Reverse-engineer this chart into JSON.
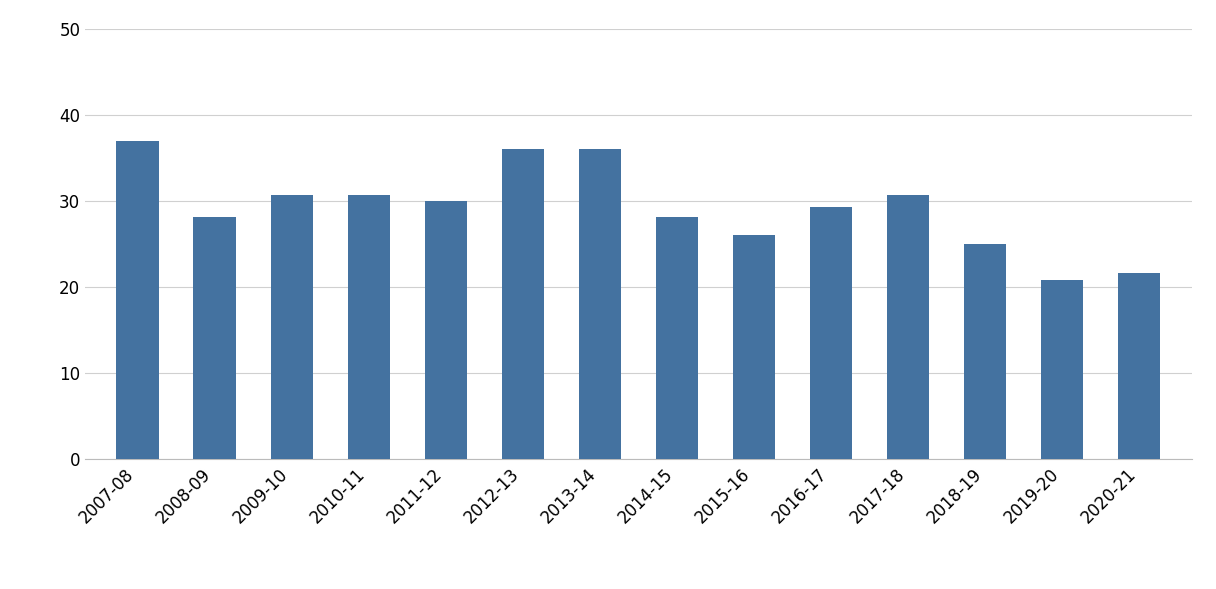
{
  "categories": [
    "2007-08",
    "2008-09",
    "2009-10",
    "2010-11",
    "2011-12",
    "2012-13",
    "2013-14",
    "2014-15",
    "2015-16",
    "2016-17",
    "2017-18",
    "2018-19",
    "2019-20",
    "2020-21"
  ],
  "values": [
    37.0,
    28.2,
    30.7,
    30.7,
    30.0,
    36.1,
    36.1,
    28.2,
    26.1,
    29.3,
    30.7,
    25.0,
    20.9,
    21.7
  ],
  "bar_color": "#4472a0",
  "ylim": [
    0,
    50
  ],
  "yticks": [
    0,
    10,
    20,
    30,
    40,
    50
  ],
  "background_color": "#ffffff",
  "grid_color": "#d0d0d0",
  "bar_width": 0.55,
  "tick_fontsize": 12
}
